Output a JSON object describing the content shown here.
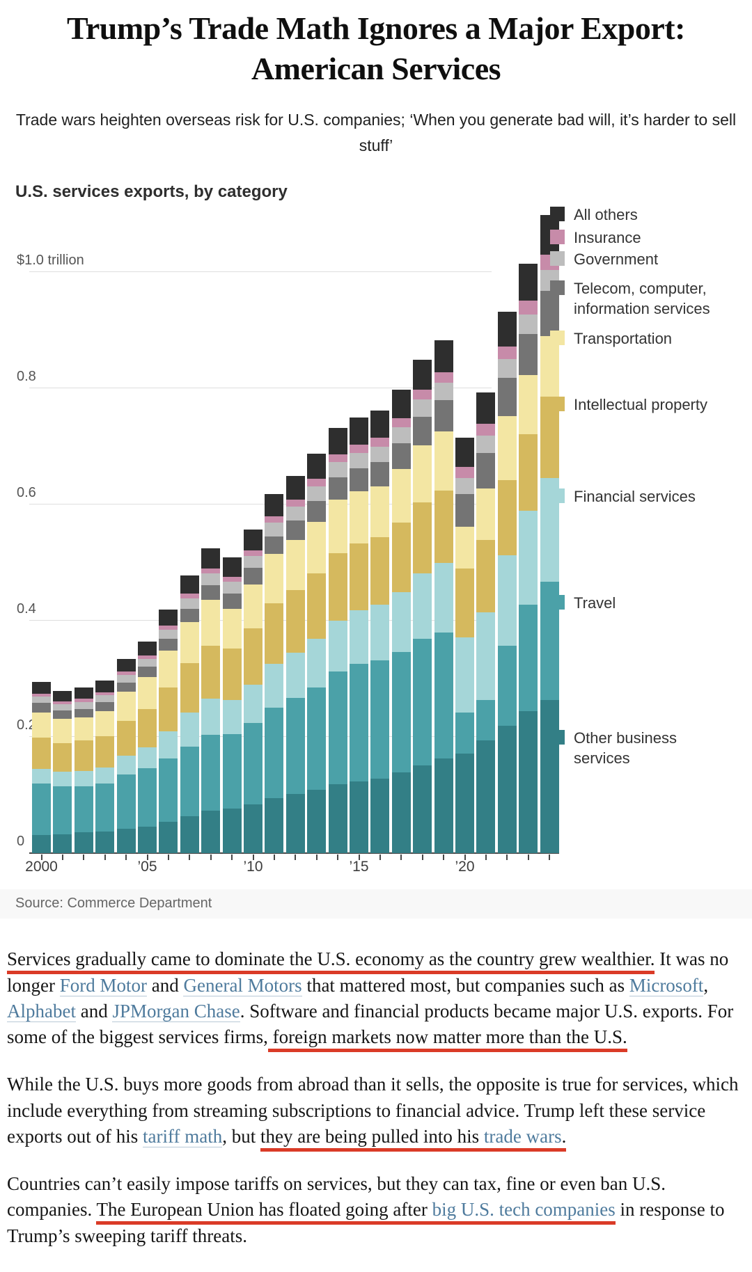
{
  "article": {
    "headline": "Trump’s Trade Math Ignores a Major Export: American Services",
    "dek": "Trade wars heighten overseas risk for U.S. companies; ‘When you generate bad will, it’s harder to sell stuff’",
    "paragraphs": [
      [
        {
          "text": "Services gradually came to dominate the U.S. economy as the country grew wealthier.",
          "red": true
        },
        {
          "text": " It was no longer "
        },
        {
          "text": "Ford Motor",
          "link": true
        },
        {
          "text": " and "
        },
        {
          "text": "General Motors",
          "link": true
        },
        {
          "text": " that mattered most, but companies such as "
        },
        {
          "text": "Microsoft",
          "link": true
        },
        {
          "text": ", "
        },
        {
          "text": "Alphabet",
          "link": true
        },
        {
          "text": " and "
        },
        {
          "text": "JPMorgan Chase",
          "link": true
        },
        {
          "text": ". Software and financial products became major U.S. exports. For some of the biggest services firms,"
        },
        {
          "text": " foreign markets now matter more than the U.S.",
          "red": true
        }
      ],
      [
        {
          "text": "While the U.S. buys more goods from abroad than it sells, the opposite is true for services, which include everything from streaming subscriptions to financial advice. Trump left these service exports out of his "
        },
        {
          "text": "tariff math",
          "link": true
        },
        {
          "text": ", but "
        },
        {
          "text": "they are being pulled into his ",
          "red": true
        },
        {
          "text": "trade wars",
          "link": true,
          "red": true
        },
        {
          "text": ".",
          "red": true
        }
      ],
      [
        {
          "text": "Countries can’t easily impose tariffs on services, but they can tax, fine or even ban U.S. companies. "
        },
        {
          "text": "The European Union has floated going after ",
          "red": true
        },
        {
          "text": "big U.S. tech companies",
          "link": true,
          "red": true
        },
        {
          "text": " in response to Trump’s sweeping tariff threats."
        }
      ]
    ]
  },
  "chart_data": {
    "type": "bar",
    "stacked": true,
    "title": "U.S. services exports, by category",
    "source": "Source: Commerce Department",
    "unit": "trillions of dollars",
    "categories": [
      2000,
      2001,
      2002,
      2003,
      2004,
      2005,
      2006,
      2007,
      2008,
      2009,
      2010,
      2011,
      2012,
      2013,
      2014,
      2015,
      2016,
      2017,
      2018,
      2019,
      2020,
      2021,
      2022,
      2023,
      2024
    ],
    "x_tick_years": [
      2000,
      2005,
      2010,
      2015,
      2020
    ],
    "x_tick_labels": [
      "2000",
      "’05",
      "’10",
      "’15",
      "’20"
    ],
    "y_ticks": [
      0,
      0.2,
      0.4,
      0.6,
      0.8,
      1.0
    ],
    "y_tick_labels": [
      "0",
      "0.2",
      "0.4",
      "0.6",
      "0.8",
      "$1.0 trillion"
    ],
    "ylim": [
      0,
      1.12
    ],
    "grid": true,
    "legend_position": "right",
    "series": [
      {
        "name": "Other business services",
        "color": "#337f86",
        "values": [
          0.032,
          0.033,
          0.036,
          0.038,
          0.042,
          0.046,
          0.054,
          0.064,
          0.074,
          0.077,
          0.084,
          0.095,
          0.102,
          0.11,
          0.119,
          0.124,
          0.129,
          0.139,
          0.152,
          0.163,
          0.172,
          0.194,
          0.22,
          0.245,
          0.264
        ]
      },
      {
        "name": "Travel",
        "color": "#4ba1a8",
        "values": [
          0.088,
          0.082,
          0.08,
          0.082,
          0.094,
          0.101,
          0.11,
          0.12,
          0.13,
          0.128,
          0.14,
          0.156,
          0.165,
          0.176,
          0.194,
          0.202,
          0.203,
          0.208,
          0.218,
          0.217,
          0.07,
          0.07,
          0.138,
          0.183,
          0.204
        ]
      },
      {
        "name": "Financial services",
        "color": "#a5d6d8",
        "values": [
          0.026,
          0.025,
          0.026,
          0.028,
          0.032,
          0.036,
          0.046,
          0.058,
          0.062,
          0.059,
          0.067,
          0.075,
          0.078,
          0.084,
          0.088,
          0.092,
          0.096,
          0.103,
          0.112,
          0.12,
          0.13,
          0.151,
          0.155,
          0.162,
          0.178
        ]
      },
      {
        "name": "Intellectual property",
        "color": "#d5b95e",
        "values": [
          0.053,
          0.05,
          0.052,
          0.054,
          0.06,
          0.065,
          0.076,
          0.086,
          0.092,
          0.089,
          0.096,
          0.105,
          0.108,
          0.112,
          0.116,
          0.116,
          0.116,
          0.119,
          0.122,
          0.124,
          0.118,
          0.124,
          0.129,
          0.132,
          0.14
        ]
      },
      {
        "name": "Transportation",
        "color": "#f3e6a3",
        "values": [
          0.044,
          0.041,
          0.04,
          0.043,
          0.05,
          0.056,
          0.063,
          0.07,
          0.078,
          0.068,
          0.076,
          0.084,
          0.086,
          0.089,
          0.092,
          0.089,
          0.088,
          0.092,
          0.098,
          0.102,
          0.072,
          0.089,
          0.111,
          0.101,
          0.105
        ]
      },
      {
        "name": "Telecom, computer, information services",
        "color": "#747474",
        "values": [
          0.016,
          0.015,
          0.015,
          0.015,
          0.016,
          0.017,
          0.02,
          0.023,
          0.026,
          0.026,
          0.028,
          0.031,
          0.034,
          0.036,
          0.038,
          0.04,
          0.042,
          0.045,
          0.05,
          0.054,
          0.056,
          0.061,
          0.066,
          0.071,
          0.077
        ]
      },
      {
        "name": "Government",
        "color": "#bdbdbd",
        "values": [
          0.011,
          0.011,
          0.012,
          0.012,
          0.013,
          0.014,
          0.016,
          0.018,
          0.02,
          0.02,
          0.021,
          0.023,
          0.024,
          0.025,
          0.026,
          0.026,
          0.026,
          0.027,
          0.029,
          0.03,
          0.028,
          0.03,
          0.032,
          0.034,
          0.036
        ]
      },
      {
        "name": "Insurance",
        "color": "#c78ba9",
        "values": [
          0.005,
          0.005,
          0.005,
          0.005,
          0.006,
          0.006,
          0.007,
          0.008,
          0.009,
          0.009,
          0.01,
          0.011,
          0.012,
          0.013,
          0.014,
          0.015,
          0.015,
          0.016,
          0.017,
          0.018,
          0.019,
          0.02,
          0.022,
          0.024,
          0.026
        ]
      },
      {
        "name": "All others",
        "color": "#2e2e2e",
        "values": [
          0.02,
          0.018,
          0.019,
          0.02,
          0.022,
          0.024,
          0.028,
          0.031,
          0.034,
          0.033,
          0.036,
          0.039,
          0.041,
          0.043,
          0.045,
          0.046,
          0.047,
          0.049,
          0.052,
          0.055,
          0.05,
          0.054,
          0.059,
          0.063,
          0.069
        ]
      }
    ]
  }
}
